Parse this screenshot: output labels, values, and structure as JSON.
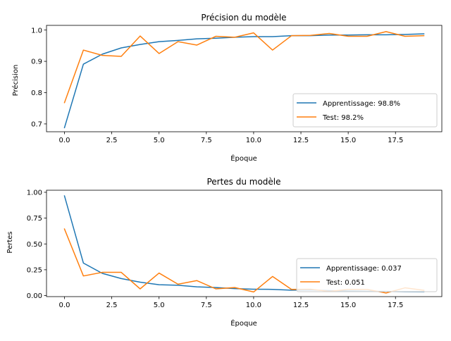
{
  "chart_data": [
    {
      "type": "line",
      "title": "Précision du modèle",
      "xlabel": "Époque",
      "ylabel": "Précision",
      "xlim": [
        -0.95,
        19.95
      ],
      "ylim": [
        0.675,
        1.015
      ],
      "xticks": [
        0.0,
        2.5,
        5.0,
        7.5,
        10.0,
        12.5,
        15.0,
        17.5
      ],
      "xtick_labels": [
        "0.0",
        "2.5",
        "5.0",
        "7.5",
        "10.0",
        "12.5",
        "15.0",
        "17.5"
      ],
      "yticks": [
        0.7,
        0.8,
        0.9,
        1.0
      ],
      "ytick_labels": [
        "0.7",
        "0.8",
        "0.9",
        "1.0"
      ],
      "grid": false,
      "legend_position": "lower-right",
      "x": [
        0,
        1,
        2,
        3,
        4,
        5,
        6,
        7,
        8,
        9,
        10,
        11,
        12,
        13,
        14,
        15,
        16,
        17,
        18,
        19
      ],
      "series": [
        {
          "name": "Apprentissage: 98.8%",
          "color": "#1f77b4",
          "values": [
            0.688,
            0.891,
            0.923,
            0.943,
            0.954,
            0.963,
            0.967,
            0.972,
            0.974,
            0.977,
            0.979,
            0.979,
            0.982,
            0.982,
            0.984,
            0.984,
            0.985,
            0.985,
            0.986,
            0.988
          ]
        },
        {
          "name": "Test: 98.2%",
          "color": "#ff7f0e",
          "values": [
            0.768,
            0.936,
            0.919,
            0.916,
            0.981,
            0.925,
            0.963,
            0.952,
            0.98,
            0.977,
            0.991,
            0.936,
            0.982,
            0.983,
            0.989,
            0.98,
            0.98,
            0.995,
            0.98,
            0.982
          ]
        }
      ]
    },
    {
      "type": "line",
      "title": "Pertes du modèle",
      "xlabel": "Époque",
      "ylabel": "Pertes",
      "xlim": [
        -0.95,
        19.95
      ],
      "ylim": [
        -0.01,
        1.02
      ],
      "xticks": [
        0.0,
        2.5,
        5.0,
        7.5,
        10.0,
        12.5,
        15.0,
        17.5
      ],
      "xtick_labels": [
        "0.0",
        "2.5",
        "5.0",
        "7.5",
        "10.0",
        "12.5",
        "15.0",
        "17.5"
      ],
      "yticks": [
        0.0,
        0.25,
        0.5,
        0.75,
        1.0
      ],
      "ytick_labels": [
        "0.00",
        "0.25",
        "0.50",
        "0.75",
        "1.00"
      ],
      "grid": false,
      "legend_position": "lower-right",
      "x": [
        0,
        1,
        2,
        3,
        4,
        5,
        6,
        7,
        8,
        9,
        10,
        11,
        12,
        13,
        14,
        15,
        16,
        17,
        18,
        19
      ],
      "series": [
        {
          "name": "Apprentissage: 0.037",
          "color": "#1f77b4",
          "values": [
            0.965,
            0.315,
            0.215,
            0.165,
            0.13,
            0.105,
            0.1,
            0.085,
            0.078,
            0.068,
            0.062,
            0.06,
            0.052,
            0.055,
            0.048,
            0.045,
            0.042,
            0.04,
            0.038,
            0.037
          ]
        },
        {
          "name": "Test: 0.051",
          "color": "#ff7f0e",
          "values": [
            0.645,
            0.19,
            0.225,
            0.225,
            0.065,
            0.218,
            0.11,
            0.145,
            0.065,
            0.078,
            0.035,
            0.185,
            0.06,
            0.062,
            0.04,
            0.06,
            0.06,
            0.025,
            0.075,
            0.051
          ]
        }
      ]
    }
  ]
}
